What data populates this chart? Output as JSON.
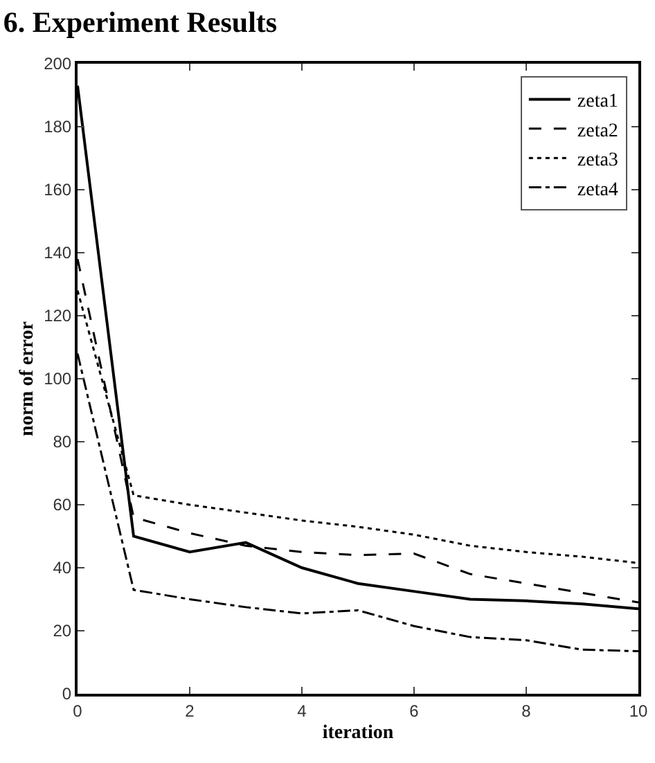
{
  "chart_data": {
    "type": "line",
    "title": "6. Experiment Results",
    "xlabel": "iteration",
    "ylabel": "norm of error",
    "x": [
      0,
      1,
      2,
      3,
      4,
      5,
      6,
      7,
      8,
      9,
      10
    ],
    "series": [
      {
        "name": "zeta1",
        "color": "#000000",
        "line_style": "solid",
        "values": [
          193,
          50,
          45,
          48,
          40,
          35,
          32.5,
          30,
          29.5,
          28.5,
          27
        ]
      },
      {
        "name": "zeta2",
        "color": "#000000",
        "line_style": "dashed",
        "values": [
          138,
          56,
          51,
          47,
          45,
          44,
          44.5,
          38,
          35,
          32,
          29
        ]
      },
      {
        "name": "zeta3",
        "color": "#000000",
        "line_style": "dotted",
        "values": [
          128,
          63,
          60,
          57.5,
          55,
          53,
          50.5,
          47,
          45,
          43.5,
          41.5
        ]
      },
      {
        "name": "zeta4",
        "color": "#000000",
        "line_style": "dashdot",
        "values": [
          108,
          33,
          30,
          27.5,
          25.5,
          26.5,
          21.5,
          18,
          17,
          14,
          13.5
        ]
      }
    ],
    "xlim": [
      0,
      10
    ],
    "xticks": [
      0,
      2,
      4,
      6,
      8,
      10
    ],
    "ylim": [
      0,
      200
    ],
    "yticks": [
      0,
      20,
      40,
      60,
      80,
      100,
      120,
      140,
      160,
      180,
      200
    ],
    "grid": false,
    "legend": "top right",
    "marker": "none"
  }
}
